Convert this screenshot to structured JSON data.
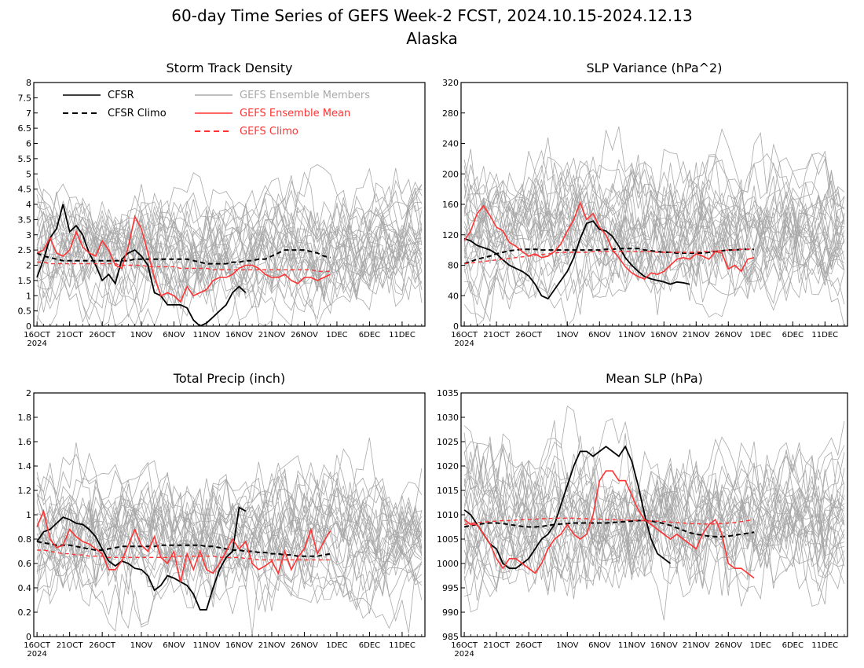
{
  "figure": {
    "title": "60-day Time Series of GEFS Week-2 FCST, 2024.10.15-2024.12.13",
    "subtitle": "Alaska"
  },
  "legend": {
    "entries": [
      {
        "label": "CFSR",
        "color": "#000000",
        "style": "solid"
      },
      {
        "label": "CFSR Climo",
        "color": "#000000",
        "style": "dashed"
      },
      {
        "label": "GEFS Ensemble Members",
        "color": "#a9a9a9",
        "style": "solid"
      },
      {
        "label": "GEFS Ensemble Mean",
        "color": "#ff3333",
        "style": "solid"
      },
      {
        "label": "GEFS Climo",
        "color": "#ff3333",
        "style": "dashed"
      }
    ]
  },
  "colors": {
    "cfsr": "#000000",
    "gefs_mean": "#ff3333",
    "members": "#a9a9a9"
  },
  "chart_data": [
    {
      "type": "line",
      "title": "Storm Track Density",
      "x_range_days": [
        15,
        74
      ],
      "ylim": [
        0,
        8
      ],
      "yticks": [
        0,
        0.5,
        1,
        1.5,
        2,
        2.5,
        3,
        3.5,
        4,
        4.5,
        5,
        5.5,
        6,
        6.5,
        7,
        7.5,
        8
      ],
      "ytick_labels": [
        "0",
        "0.5",
        "1",
        "1.5",
        "2",
        "2.5",
        "3",
        "3.5",
        "4",
        "4.5",
        "5",
        "5.5",
        "6",
        "6.5",
        "7",
        "7.5",
        "8"
      ],
      "xtick_labels": [
        "16OCT",
        "21OCT",
        "26OCT",
        "1NOV",
        "6NOV",
        "11NOV",
        "16NOV",
        "21NOV",
        "26NOV",
        "1DEC",
        "6DEC",
        "11DEC"
      ],
      "year_label": "2024",
      "member_spread": {
        "lower": 0.4,
        "upper": 4.6
      },
      "series": [
        {
          "name": "CFSR",
          "start_day": 15,
          "values": [
            1.6,
            2.2,
            2.9,
            3.2,
            4.0,
            3.1,
            3.3,
            3.0,
            2.4,
            2.0,
            1.5,
            1.7,
            1.4,
            2.2,
            2.4,
            2.5,
            2.3,
            2.0,
            1.1,
            1.0,
            0.7,
            0.7,
            0.7,
            0.6,
            0.2,
            0.0,
            0.1,
            0.3,
            0.5,
            0.7,
            1.1,
            1.3,
            1.1
          ]
        },
        {
          "name": "CFSR Climo",
          "start_day": 15,
          "values": [
            2.4,
            2.3,
            2.25,
            2.2,
            2.15,
            2.15,
            2.15,
            2.15,
            2.15,
            2.15,
            2.15,
            2.15,
            2.15,
            2.15,
            2.15,
            2.2,
            2.2,
            2.2,
            2.2,
            2.2,
            2.2,
            2.2,
            2.2,
            2.2,
            2.15,
            2.1,
            2.05,
            2.05,
            2.05,
            2.05,
            2.1,
            2.1,
            2.15,
            2.15,
            2.2,
            2.2,
            2.3,
            2.4,
            2.5,
            2.5,
            2.5,
            2.5,
            2.45,
            2.4,
            2.3,
            2.25
          ]
        },
        {
          "name": "GEFS Ensemble Mean",
          "start_day": 15,
          "values": [
            2.4,
            2.5,
            2.9,
            2.4,
            2.3,
            2.5,
            3.1,
            2.6,
            2.4,
            2.3,
            2.8,
            2.5,
            2.0,
            1.9,
            2.6,
            3.6,
            3.2,
            2.4,
            1.6,
            1.0,
            1.1,
            1.0,
            0.8,
            1.3,
            1.0,
            1.1,
            1.2,
            1.5,
            1.6,
            1.6,
            1.7,
            1.9,
            2.0,
            2.0,
            1.9,
            1.7,
            1.6,
            1.6,
            1.7,
            1.5,
            1.4,
            1.6,
            1.6,
            1.5,
            1.6,
            1.7
          ]
        },
        {
          "name": "GEFS Climo",
          "start_day": 15,
          "values": [
            2.1,
            2.1,
            2.05,
            2.05,
            2.05,
            2.05,
            2.05,
            2.05,
            2.05,
            2.05,
            2.05,
            2.05,
            2.05,
            2.0,
            2.0,
            2.0,
            2.0,
            1.95,
            1.95,
            1.95,
            1.95,
            1.95,
            1.9,
            1.9,
            1.9,
            1.9,
            1.9,
            1.85,
            1.85,
            1.85,
            1.85,
            1.85,
            1.85,
            1.85,
            1.85,
            1.85,
            1.85,
            1.85,
            1.85,
            1.85,
            1.85,
            1.85,
            1.85,
            1.8,
            1.8,
            1.8
          ]
        }
      ]
    },
    {
      "type": "line",
      "title": "SLP Variance (hPa^2)",
      "x_range_days": [
        15,
        74
      ],
      "ylim": [
        0,
        320
      ],
      "yticks": [
        0,
        40,
        80,
        120,
        160,
        200,
        240,
        280,
        320
      ],
      "ytick_labels": [
        "0",
        "40",
        "80",
        "120",
        "160",
        "200",
        "240",
        "280",
        "320"
      ],
      "xtick_labels": [
        "16OCT",
        "21OCT",
        "26OCT",
        "1NOV",
        "6NOV",
        "11NOV",
        "16NOV",
        "21NOV",
        "26NOV",
        "1DEC",
        "6DEC",
        "11DEC"
      ],
      "year_label": "2024",
      "member_spread": {
        "lower": 35,
        "upper": 230
      },
      "series": [
        {
          "name": "CFSR",
          "start_day": 15,
          "values": [
            115,
            112,
            106,
            103,
            100,
            95,
            87,
            80,
            76,
            72,
            66,
            55,
            40,
            36,
            48,
            60,
            72,
            90,
            115,
            135,
            138,
            127,
            125,
            118,
            105,
            90,
            80,
            72,
            65,
            62,
            60,
            58,
            55,
            58,
            57,
            55
          ]
        },
        {
          "name": "CFSR Climo",
          "start_day": 15,
          "values": [
            82,
            85,
            88,
            90,
            92,
            95,
            97,
            99,
            100,
            101,
            101,
            101,
            100,
            100,
            100,
            100,
            100,
            100,
            100,
            100,
            100,
            100,
            101,
            101,
            102,
            102,
            102,
            102,
            100,
            99,
            98,
            97,
            97,
            96,
            96,
            96,
            96,
            96,
            97,
            98,
            99,
            100,
            100,
            101,
            101,
            101
          ]
        },
        {
          "name": "GEFS Ensemble Mean",
          "start_day": 15,
          "values": [
            112,
            125,
            148,
            158,
            145,
            130,
            125,
            110,
            105,
            98,
            92,
            95,
            90,
            92,
            98,
            108,
            125,
            140,
            162,
            140,
            148,
            130,
            120,
            100,
            90,
            78,
            70,
            65,
            62,
            70,
            68,
            72,
            80,
            88,
            90,
            88,
            95,
            92,
            88,
            98,
            96,
            75,
            80,
            72,
            88,
            90
          ]
        },
        {
          "name": "GEFS Climo",
          "start_day": 15,
          "values": [
            82,
            83,
            84,
            85,
            86,
            87,
            88,
            89,
            90,
            91,
            92,
            93,
            94,
            95,
            96,
            97,
            97,
            97,
            97,
            97,
            98,
            98,
            98,
            98,
            98,
            98,
            98,
            98,
            98,
            98,
            97,
            97,
            97,
            97,
            97,
            97,
            97,
            98,
            98,
            99,
            99,
            100,
            100,
            101,
            101,
            102
          ]
        }
      ]
    },
    {
      "type": "line",
      "title": "Total Precip (inch)",
      "x_range_days": [
        15,
        74
      ],
      "ylim": [
        0,
        2
      ],
      "yticks": [
        0,
        0.2,
        0.4,
        0.6,
        0.8,
        1,
        1.2,
        1.4,
        1.6,
        1.8,
        2
      ],
      "ytick_labels": [
        "0",
        "0.2",
        "0.4",
        "0.6",
        "0.8",
        "1",
        "1.2",
        "1.4",
        "1.6",
        "1.8",
        "2"
      ],
      "xtick_labels": [
        "16OCT",
        "21OCT",
        "26OCT",
        "1NOV",
        "6NOV",
        "11NOV",
        "16NOV",
        "21NOV",
        "26NOV",
        "1DEC",
        "6DEC",
        "11DEC"
      ],
      "year_label": "2024",
      "member_spread": {
        "lower": 0.25,
        "upper": 1.4
      },
      "series": [
        {
          "name": "CFSR",
          "start_day": 15,
          "values": [
            0.78,
            0.86,
            0.88,
            0.93,
            0.98,
            0.96,
            0.93,
            0.92,
            0.88,
            0.82,
            0.72,
            0.62,
            0.58,
            0.62,
            0.6,
            0.56,
            0.55,
            0.5,
            0.38,
            0.42,
            0.5,
            0.48,
            0.45,
            0.42,
            0.35,
            0.22,
            0.22,
            0.4,
            0.55,
            0.65,
            0.7,
            1.06,
            1.03
          ]
        },
        {
          "name": "CFSR Climo",
          "start_day": 15,
          "values": [
            0.78,
            0.77,
            0.76,
            0.75,
            0.75,
            0.75,
            0.74,
            0.73,
            0.72,
            0.71,
            0.71,
            0.72,
            0.73,
            0.74,
            0.74,
            0.74,
            0.74,
            0.74,
            0.74,
            0.75,
            0.75,
            0.75,
            0.75,
            0.75,
            0.75,
            0.75,
            0.74,
            0.74,
            0.73,
            0.72,
            0.71,
            0.71,
            0.7,
            0.7,
            0.69,
            0.69,
            0.68,
            0.68,
            0.67,
            0.67,
            0.66,
            0.66,
            0.66,
            0.66,
            0.67,
            0.68
          ]
        },
        {
          "name": "GEFS Ensemble Mean",
          "start_day": 15,
          "values": [
            0.9,
            1.03,
            0.8,
            0.73,
            0.75,
            0.88,
            0.82,
            0.78,
            0.76,
            0.72,
            0.68,
            0.55,
            0.55,
            0.62,
            0.75,
            0.88,
            0.75,
            0.7,
            0.82,
            0.65,
            0.6,
            0.7,
            0.45,
            0.68,
            0.55,
            0.7,
            0.55,
            0.52,
            0.6,
            0.7,
            0.8,
            0.72,
            0.78,
            0.6,
            0.55,
            0.58,
            0.62,
            0.52,
            0.7,
            0.55,
            0.65,
            0.72,
            0.88,
            0.68,
            0.78,
            0.87
          ]
        },
        {
          "name": "GEFS Climo",
          "start_day": 15,
          "values": [
            0.71,
            0.71,
            0.7,
            0.69,
            0.68,
            0.68,
            0.67,
            0.67,
            0.66,
            0.66,
            0.66,
            0.65,
            0.65,
            0.65,
            0.65,
            0.65,
            0.65,
            0.65,
            0.65,
            0.65,
            0.65,
            0.66,
            0.66,
            0.66,
            0.66,
            0.66,
            0.66,
            0.66,
            0.65,
            0.65,
            0.65,
            0.65,
            0.64,
            0.64,
            0.63,
            0.63,
            0.63,
            0.63,
            0.63,
            0.63,
            0.63,
            0.63,
            0.63,
            0.63,
            0.63,
            0.63
          ]
        }
      ]
    },
    {
      "type": "line",
      "title": "Mean SLP (hPa)",
      "x_range_days": [
        15,
        74
      ],
      "ylim": [
        985,
        1035
      ],
      "yticks": [
        985,
        990,
        995,
        1000,
        1005,
        1010,
        1015,
        1020,
        1025,
        1030,
        1035
      ],
      "ytick_labels": [
        "985",
        "990",
        "995",
        "1000",
        "1005",
        "1010",
        "1015",
        "1020",
        "1025",
        "1030",
        "1035"
      ],
      "xtick_labels": [
        "16OCT",
        "21OCT",
        "26OCT",
        "1NOV",
        "6NOV",
        "11NOV",
        "16NOV",
        "21NOV",
        "26NOV",
        "1DEC",
        "6DEC",
        "11DEC"
      ],
      "year_label": "2024",
      "member_spread": {
        "lower": 994,
        "upper": 1025
      },
      "series": [
        {
          "name": "CFSR",
          "start_day": 15,
          "values": [
            1011,
            1010,
            1008,
            1006,
            1004,
            1003,
            1000,
            999,
            999,
            1000,
            1001,
            1003,
            1005,
            1006,
            1008,
            1012,
            1016,
            1020,
            1023,
            1023,
            1022,
            1023,
            1024,
            1023,
            1022,
            1024,
            1021,
            1016,
            1010,
            1005,
            1002,
            1001,
            1000
          ]
        },
        {
          "name": "CFSR Climo",
          "start_day": 15,
          "values": [
            1007.5,
            1007.8,
            1008,
            1008.2,
            1008.3,
            1008.3,
            1008.2,
            1008,
            1007.8,
            1007.6,
            1007.5,
            1007.5,
            1007.6,
            1007.8,
            1008,
            1008.1,
            1008.2,
            1008.3,
            1008.3,
            1008.3,
            1008.3,
            1008.3,
            1008.3,
            1008.4,
            1008.5,
            1008.6,
            1008.7,
            1008.8,
            1008.8,
            1008.7,
            1008.5,
            1008.2,
            1007.8,
            1007.3,
            1006.8,
            1006.3,
            1006,
            1005.8,
            1005.6,
            1005.5,
            1005.5,
            1005.6,
            1005.8,
            1006,
            1006.2,
            1006.4
          ]
        },
        {
          "name": "GEFS Ensemble Mean",
          "start_day": 15,
          "values": [
            1009,
            1008,
            1008,
            1006,
            1004,
            1001,
            999,
            1001,
            1001,
            1000,
            999,
            998,
            1000,
            1003,
            1005,
            1006,
            1008,
            1006,
            1005,
            1006,
            1010,
            1017,
            1019,
            1019,
            1017,
            1017,
            1014,
            1011,
            1009,
            1008,
            1007,
            1006,
            1005,
            1006,
            1005,
            1004,
            1003,
            1006,
            1008,
            1009,
            1006,
            1000,
            999,
            999,
            998,
            997
          ]
        },
        {
          "name": "GEFS Climo",
          "start_day": 15,
          "values": [
            1008,
            1008.2,
            1008.4,
            1008.5,
            1008.6,
            1008.7,
            1008.8,
            1008.8,
            1008.9,
            1009,
            1009,
            1009.1,
            1009.2,
            1009.2,
            1009.3,
            1009.3,
            1009.3,
            1009.3,
            1009.2,
            1009.2,
            1009.1,
            1009.1,
            1009,
            1009,
            1008.9,
            1008.9,
            1008.9,
            1008.8,
            1008.8,
            1008.7,
            1008.7,
            1008.6,
            1008.5,
            1008.4,
            1008.3,
            1008.2,
            1008.2,
            1008.1,
            1008.1,
            1008.1,
            1008.2,
            1008.3,
            1008.4,
            1008.6,
            1008.8,
            1009
          ]
        }
      ]
    }
  ]
}
